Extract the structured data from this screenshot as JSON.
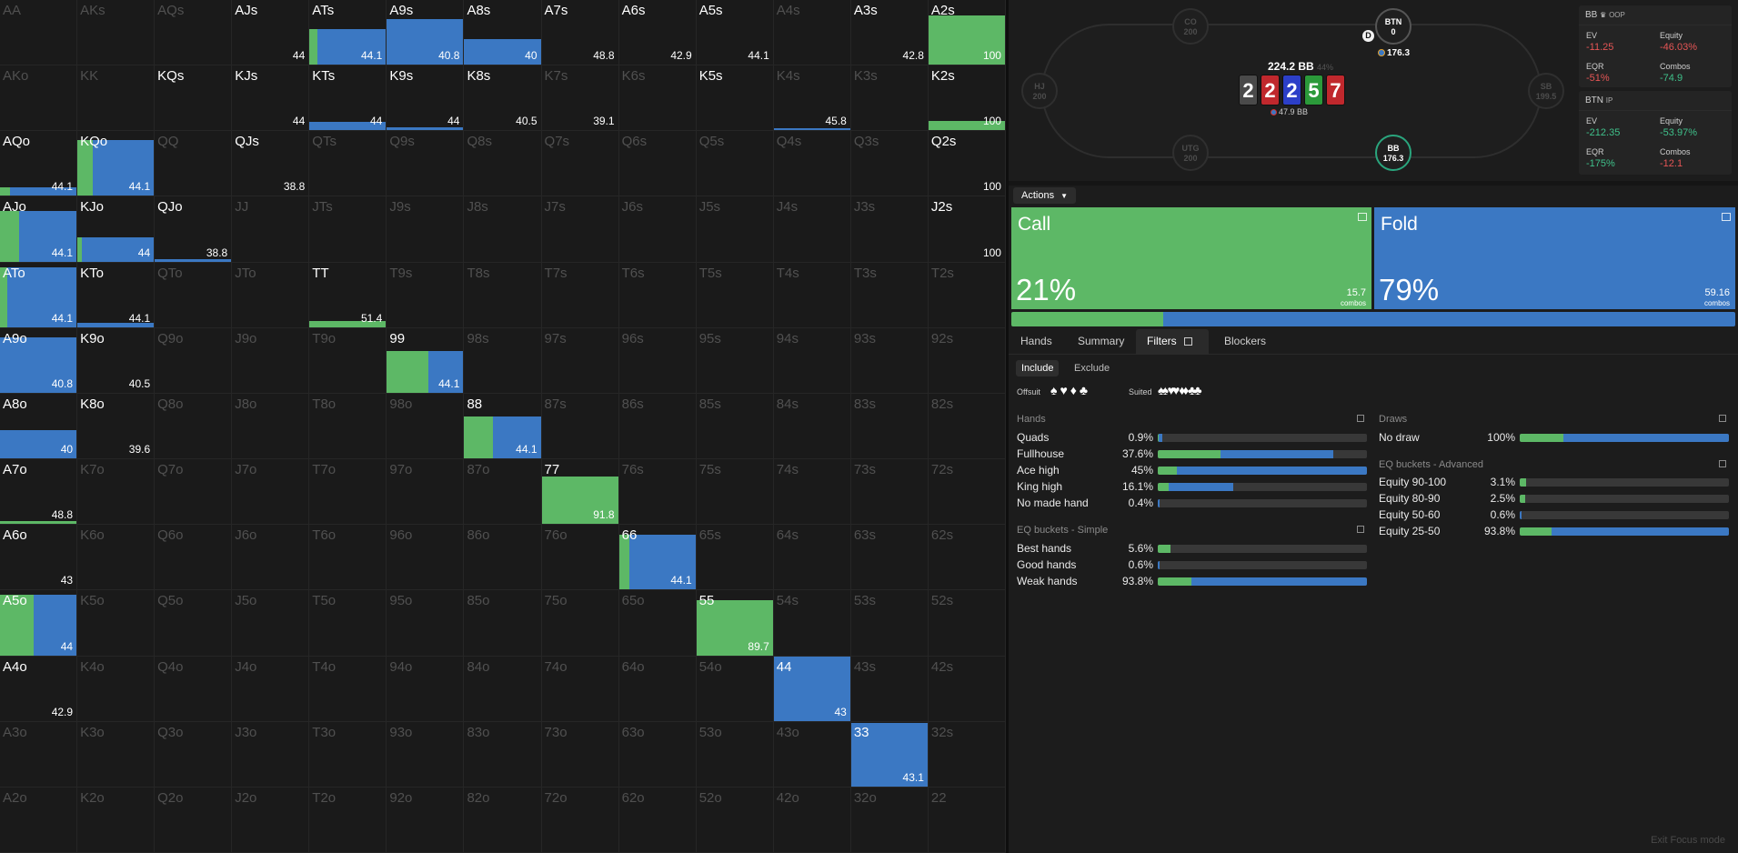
{
  "grid": {
    "colors": {
      "call": "#5db866",
      "fold": "#3b78c3"
    },
    "cells": [
      {
        "label": "AA",
        "in": false
      },
      {
        "label": "AKs",
        "in": false
      },
      {
        "label": "AQs",
        "in": false
      },
      {
        "label": "AJs",
        "in": true,
        "value": "44"
      },
      {
        "label": "ATs",
        "in": true,
        "call": 0.1,
        "fold": 0.9,
        "fill": 0.55,
        "value": "44.1"
      },
      {
        "label": "A9s",
        "in": true,
        "call": 0,
        "fold": 1,
        "fill": 0.7,
        "value": "40.8"
      },
      {
        "label": "A8s",
        "in": true,
        "call": 0,
        "fold": 1,
        "fill": 0.4,
        "value": "40"
      },
      {
        "label": "A7s",
        "in": true,
        "value": "48.8"
      },
      {
        "label": "A6s",
        "in": true,
        "value": "42.9"
      },
      {
        "label": "A5s",
        "in": true,
        "value": "44.1"
      },
      {
        "label": "A4s",
        "in": false
      },
      {
        "label": "A3s",
        "in": true,
        "value": "42.8"
      },
      {
        "label": "A2s",
        "in": true,
        "call": 1,
        "fold": 0,
        "fill": 0.76,
        "value": "100"
      },
      {
        "label": "AKo",
        "in": false
      },
      {
        "label": "KK",
        "in": false
      },
      {
        "label": "KQs",
        "in": true
      },
      {
        "label": "KJs",
        "in": true,
        "value": "44"
      },
      {
        "label": "KTs",
        "in": true,
        "call": 0,
        "fold": 1,
        "fill": 0.13,
        "value": "44"
      },
      {
        "label": "K9s",
        "in": true,
        "call": 0,
        "fold": 1,
        "fill": 0.04,
        "value": "44"
      },
      {
        "label": "K8s",
        "in": true,
        "value": "40.5"
      },
      {
        "label": "K7s",
        "in": false,
        "value": "39.1"
      },
      {
        "label": "K6s",
        "in": false
      },
      {
        "label": "K5s",
        "in": true
      },
      {
        "label": "K4s",
        "in": false,
        "call": 0,
        "fold": 1,
        "fill": 0.03,
        "value": "45.8"
      },
      {
        "label": "K3s",
        "in": false
      },
      {
        "label": "K2s",
        "in": true,
        "call": 1,
        "fold": 0,
        "fill": 0.14,
        "value": "100"
      },
      {
        "label": "AQo",
        "in": true,
        "call": 0.13,
        "fold": 0.87,
        "fill": 0.13,
        "value": "44.1"
      },
      {
        "label": "KQo",
        "in": true,
        "call": 0.2,
        "fold": 0.8,
        "fill": 0.86,
        "value": "44.1"
      },
      {
        "label": "QQ",
        "in": false
      },
      {
        "label": "QJs",
        "in": true,
        "value": "38.8"
      },
      {
        "label": "QTs",
        "in": false
      },
      {
        "label": "Q9s",
        "in": false
      },
      {
        "label": "Q8s",
        "in": false
      },
      {
        "label": "Q7s",
        "in": false
      },
      {
        "label": "Q6s",
        "in": false
      },
      {
        "label": "Q5s",
        "in": false
      },
      {
        "label": "Q4s",
        "in": false
      },
      {
        "label": "Q3s",
        "in": false
      },
      {
        "label": "Q2s",
        "in": true,
        "value": "100"
      },
      {
        "label": "AJo",
        "in": true,
        "call": 0.25,
        "fold": 0.75,
        "fill": 0.78,
        "value": "44.1"
      },
      {
        "label": "KJo",
        "in": true,
        "call": 0.06,
        "fold": 0.94,
        "fill": 0.38,
        "value": "44"
      },
      {
        "label": "QJo",
        "in": true,
        "call": 0,
        "fold": 1,
        "fill": 0.04,
        "value": "38.8"
      },
      {
        "label": "JJ",
        "in": false
      },
      {
        "label": "JTs",
        "in": false
      },
      {
        "label": "J9s",
        "in": false
      },
      {
        "label": "J8s",
        "in": false
      },
      {
        "label": "J7s",
        "in": false
      },
      {
        "label": "J6s",
        "in": false
      },
      {
        "label": "J5s",
        "in": false
      },
      {
        "label": "J4s",
        "in": false
      },
      {
        "label": "J3s",
        "in": false
      },
      {
        "label": "J2s",
        "in": true,
        "value": "100"
      },
      {
        "label": "ATo",
        "in": true,
        "call": 0.1,
        "fold": 0.9,
        "fill": 0.93,
        "value": "44.1"
      },
      {
        "label": "KTo",
        "in": true,
        "call": 0,
        "fold": 1,
        "fill": 0.06,
        "value": "44.1"
      },
      {
        "label": "QTo",
        "in": false
      },
      {
        "label": "JTo",
        "in": false
      },
      {
        "label": "TT",
        "in": true,
        "call": 1,
        "fold": 0,
        "fill": 0.1,
        "value": "51.4"
      },
      {
        "label": "T9s",
        "in": false
      },
      {
        "label": "T8s",
        "in": false
      },
      {
        "label": "T7s",
        "in": false
      },
      {
        "label": "T6s",
        "in": false
      },
      {
        "label": "T5s",
        "in": false
      },
      {
        "label": "T4s",
        "in": false
      },
      {
        "label": "T3s",
        "in": false
      },
      {
        "label": "T2s",
        "in": false
      },
      {
        "label": "A9o",
        "in": true,
        "call": 0,
        "fold": 1,
        "fill": 0.86,
        "value": "40.8"
      },
      {
        "label": "K9o",
        "in": true,
        "value": "40.5"
      },
      {
        "label": "Q9o",
        "in": false
      },
      {
        "label": "J9o",
        "in": false
      },
      {
        "label": "T9o",
        "in": false
      },
      {
        "label": "99",
        "in": true,
        "call": 0.54,
        "fold": 0.46,
        "fill": 0.65,
        "value": "44.1"
      },
      {
        "label": "98s",
        "in": false
      },
      {
        "label": "97s",
        "in": false
      },
      {
        "label": "96s",
        "in": false
      },
      {
        "label": "95s",
        "in": false
      },
      {
        "label": "94s",
        "in": false
      },
      {
        "label": "93s",
        "in": false
      },
      {
        "label": "92s",
        "in": false
      },
      {
        "label": "A8o",
        "in": true,
        "call": 0,
        "fold": 1,
        "fill": 0.43,
        "value": "40"
      },
      {
        "label": "K8o",
        "in": true,
        "value": "39.6"
      },
      {
        "label": "Q8o",
        "in": false
      },
      {
        "label": "J8o",
        "in": false
      },
      {
        "label": "T8o",
        "in": false
      },
      {
        "label": "98o",
        "in": false
      },
      {
        "label": "88",
        "in": true,
        "call": 0.37,
        "fold": 0.63,
        "fill": 0.65,
        "value": "44.1"
      },
      {
        "label": "87s",
        "in": false
      },
      {
        "label": "86s",
        "in": false
      },
      {
        "label": "85s",
        "in": false
      },
      {
        "label": "84s",
        "in": false
      },
      {
        "label": "83s",
        "in": false
      },
      {
        "label": "82s",
        "in": false
      },
      {
        "label": "A7o",
        "in": true,
        "call": 1,
        "fold": 0,
        "fill": 0.04,
        "value": "48.8"
      },
      {
        "label": "K7o",
        "in": false
      },
      {
        "label": "Q7o",
        "in": false
      },
      {
        "label": "J7o",
        "in": false
      },
      {
        "label": "T7o",
        "in": false
      },
      {
        "label": "97o",
        "in": false
      },
      {
        "label": "87o",
        "in": false
      },
      {
        "label": "77",
        "in": true,
        "call": 1,
        "fold": 0,
        "fill": 0.74,
        "value": "91.8"
      },
      {
        "label": "76s",
        "in": false
      },
      {
        "label": "75s",
        "in": false
      },
      {
        "label": "74s",
        "in": false
      },
      {
        "label": "73s",
        "in": false
      },
      {
        "label": "72s",
        "in": false
      },
      {
        "label": "A6o",
        "in": true,
        "value": "43"
      },
      {
        "label": "K6o",
        "in": false
      },
      {
        "label": "Q6o",
        "in": false
      },
      {
        "label": "J6o",
        "in": false
      },
      {
        "label": "T6o",
        "in": false
      },
      {
        "label": "96o",
        "in": false
      },
      {
        "label": "86o",
        "in": false
      },
      {
        "label": "76o",
        "in": false
      },
      {
        "label": "66",
        "in": true,
        "call": 0.14,
        "fold": 0.86,
        "fill": 0.85,
        "value": "44.1"
      },
      {
        "label": "65s",
        "in": false
      },
      {
        "label": "64s",
        "in": false
      },
      {
        "label": "63s",
        "in": false
      },
      {
        "label": "62s",
        "in": false
      },
      {
        "label": "A5o",
        "in": true,
        "call": 0.44,
        "fold": 0.56,
        "fill": 0.93,
        "value": "44"
      },
      {
        "label": "K5o",
        "in": false
      },
      {
        "label": "Q5o",
        "in": false
      },
      {
        "label": "J5o",
        "in": false
      },
      {
        "label": "T5o",
        "in": false
      },
      {
        "label": "95o",
        "in": false
      },
      {
        "label": "85o",
        "in": false
      },
      {
        "label": "75o",
        "in": false
      },
      {
        "label": "65o",
        "in": false
      },
      {
        "label": "55",
        "in": true,
        "call": 1,
        "fold": 0,
        "fill": 0.85,
        "value": "89.7"
      },
      {
        "label": "54s",
        "in": false
      },
      {
        "label": "53s",
        "in": false
      },
      {
        "label": "52s",
        "in": false
      },
      {
        "label": "A4o",
        "in": true,
        "value": "42.9"
      },
      {
        "label": "K4o",
        "in": false
      },
      {
        "label": "Q4o",
        "in": false
      },
      {
        "label": "J4o",
        "in": false
      },
      {
        "label": "T4o",
        "in": false
      },
      {
        "label": "94o",
        "in": false
      },
      {
        "label": "84o",
        "in": false
      },
      {
        "label": "74o",
        "in": false
      },
      {
        "label": "64o",
        "in": false
      },
      {
        "label": "54o",
        "in": false
      },
      {
        "label": "44",
        "in": true,
        "call": 0,
        "fold": 1,
        "fill": 1,
        "value": "43"
      },
      {
        "label": "43s",
        "in": false
      },
      {
        "label": "42s",
        "in": false
      },
      {
        "label": "A3o",
        "in": false
      },
      {
        "label": "K3o",
        "in": false
      },
      {
        "label": "Q3o",
        "in": false
      },
      {
        "label": "J3o",
        "in": false
      },
      {
        "label": "T3o",
        "in": false
      },
      {
        "label": "93o",
        "in": false
      },
      {
        "label": "83o",
        "in": false
      },
      {
        "label": "73o",
        "in": false
      },
      {
        "label": "63o",
        "in": false
      },
      {
        "label": "53o",
        "in": false
      },
      {
        "label": "43o",
        "in": false
      },
      {
        "label": "33",
        "in": true,
        "call": 0,
        "fold": 1,
        "fill": 0.98,
        "value": "43.1"
      },
      {
        "label": "32s",
        "in": false
      },
      {
        "label": "A2o",
        "in": false
      },
      {
        "label": "K2o",
        "in": false
      },
      {
        "label": "Q2o",
        "in": false
      },
      {
        "label": "J2o",
        "in": false
      },
      {
        "label": "T2o",
        "in": false
      },
      {
        "label": "92o",
        "in": false
      },
      {
        "label": "82o",
        "in": false
      },
      {
        "label": "72o",
        "in": false
      },
      {
        "label": "62o",
        "in": false
      },
      {
        "label": "52o",
        "in": false
      },
      {
        "label": "42o",
        "in": false
      },
      {
        "label": "32o",
        "in": false
      },
      {
        "label": "22",
        "in": false
      }
    ]
  },
  "table": {
    "seats": {
      "co": {
        "name": "CO",
        "stack": "200"
      },
      "btn": {
        "name": "BTN",
        "stack": "0"
      },
      "hj": {
        "name": "HJ",
        "stack": "200"
      },
      "sb": {
        "name": "SB",
        "stack": "199.5"
      },
      "utg": {
        "name": "UTG",
        "stack": "200"
      },
      "bb": {
        "name": "BB",
        "stack": "176.3"
      }
    },
    "dealer": "D",
    "btn_bet": "176.3",
    "pot": "224.2 BB",
    "pot_pct": "44%",
    "bb_bet": "47.9 BB",
    "board": [
      {
        "rank": "2",
        "color": "#4a4a4a"
      },
      {
        "rank": "2",
        "color": "#c0282d"
      },
      {
        "rank": "2",
        "color": "#2c3fc8"
      },
      {
        "rank": "5",
        "color": "#2b9a3a"
      },
      {
        "rank": "7",
        "color": "#c0282d"
      }
    ]
  },
  "players": {
    "bb": {
      "title": "BB",
      "tag": "OOP",
      "ev_label": "EV",
      "ev": "-11.25",
      "equity_label": "Equity",
      "equity": "-46.03%",
      "eqr_label": "EQR",
      "eqr": "-51%",
      "combos_label": "Combos",
      "combos": "-74.9"
    },
    "btn": {
      "title": "BTN",
      "tag": "IP",
      "ev_label": "EV",
      "ev": "-212.35",
      "equity_label": "Equity",
      "equity": "-53.97%",
      "eqr_label": "EQR",
      "eqr": "-175%",
      "combos_label": "Combos",
      "combos": "-12.1"
    }
  },
  "actions": {
    "menu_label": "Actions",
    "call": {
      "label": "Call",
      "pct": "21%",
      "combos": "15.7",
      "unit": "combos",
      "color": "#5db866",
      "share": 0.21
    },
    "fold": {
      "label": "Fold",
      "pct": "79%",
      "combos": "59.16",
      "unit": "combos",
      "color": "#3b78c3",
      "share": 0.79
    }
  },
  "tabs": {
    "hands": "Hands",
    "summary": "Summary",
    "filters": "Filters",
    "blockers": "Blockers"
  },
  "filters": {
    "include": "Include",
    "exclude": "Exclude",
    "offsuit": "Offsuit",
    "suited": "Suited",
    "hands": {
      "title": "Hands",
      "rows": [
        {
          "name": "Quads",
          "pct": "0.9%",
          "call": 0.005,
          "fold": 0.015
        },
        {
          "name": "Fullhouse",
          "pct": "37.6%",
          "call": 0.3,
          "fold": 0.54
        },
        {
          "name": "Ace high",
          "pct": "45%",
          "call": 0.09,
          "fold": 0.91
        },
        {
          "name": "King high",
          "pct": "16.1%",
          "call": 0.05,
          "fold": 0.31
        },
        {
          "name": "No made hand",
          "pct": "0.4%",
          "call": 0.0,
          "fold": 0.01
        }
      ]
    },
    "eq_simple": {
      "title": "EQ buckets - Simple",
      "rows": [
        {
          "name": "Best hands",
          "pct": "5.6%",
          "call": 0.06,
          "fold": 0.0
        },
        {
          "name": "Good hands",
          "pct": "0.6%",
          "call": 0.0,
          "fold": 0.01
        },
        {
          "name": "Weak hands",
          "pct": "93.8%",
          "call": 0.16,
          "fold": 0.84
        }
      ]
    },
    "draws": {
      "title": "Draws",
      "rows": [
        {
          "name": "No draw",
          "pct": "100%",
          "call": 0.21,
          "fold": 0.79
        }
      ]
    },
    "eq_adv": {
      "title": "EQ buckets - Advanced",
      "rows": [
        {
          "name": "Equity 90-100",
          "pct": "3.1%",
          "call": 0.03,
          "fold": 0.0
        },
        {
          "name": "Equity 80-90",
          "pct": "2.5%",
          "call": 0.025,
          "fold": 0.0
        },
        {
          "name": "Equity 50-60",
          "pct": "0.6%",
          "call": 0.0,
          "fold": 0.008
        },
        {
          "name": "Equity 25-50",
          "pct": "93.8%",
          "call": 0.15,
          "fold": 0.85
        }
      ]
    }
  },
  "footer": {
    "exit_focus": "Exit Focus mode"
  }
}
